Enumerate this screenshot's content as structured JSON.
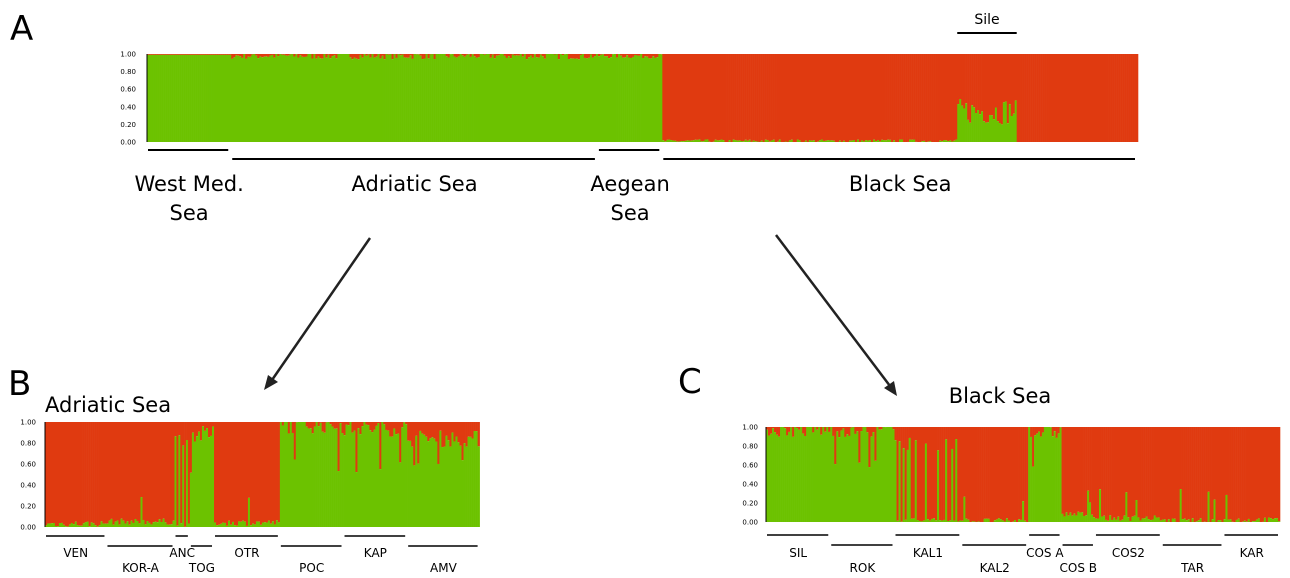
{
  "colors": {
    "green": "#6cc200",
    "red": "#e03a10"
  },
  "chart_data": [
    {
      "panel": "A",
      "type": "bar",
      "stacked": true,
      "title": "",
      "xlabel": "",
      "ylabel": "",
      "ylim": [
        0,
        1
      ],
      "yticks": [
        "1.00",
        "0.80",
        "0.60",
        "0.40",
        "0.20",
        "0.00"
      ],
      "series_colors": [
        "green",
        "red"
      ],
      "groups": [
        {
          "label": "West Med. Sea",
          "lines": [
            "West Med.",
            "Sea"
          ],
          "share": 0.085,
          "cluster1_level": 0.99,
          "cluster1_noise": 0.0
        },
        {
          "label": "Adriatic Sea",
          "lines": [
            "Adriatic Sea"
          ],
          "share": 0.37,
          "cluster1_level": 0.98,
          "cluster1_noise": 0.04
        },
        {
          "label": "Aegean Sea",
          "lines": [
            "Aegean",
            "Sea"
          ],
          "share": 0.065,
          "cluster1_level": 0.98,
          "cluster1_noise": 0.03
        },
        {
          "label": "Black Sea",
          "lines": [
            "Black Sea"
          ],
          "share": 0.48,
          "cluster1_level": 0.01,
          "cluster1_noise": 0.02
        }
      ],
      "annotation": {
        "label": "Sile",
        "cluster1_level": 0.35
      }
    },
    {
      "panel": "B",
      "title": "Adriatic Sea",
      "type": "bar",
      "stacked": true,
      "ylim": [
        0,
        1
      ],
      "yticks": [
        "1.00",
        "0.80",
        "0.60",
        "0.40",
        "0.20",
        "0.00"
      ],
      "series_colors": [
        "green",
        "red"
      ],
      "populations": [
        {
          "label": "VEN",
          "share": 0.14,
          "cluster1_level": 0.03
        },
        {
          "label": "KOR-A",
          "share": 0.155,
          "cluster1_level": 0.05
        },
        {
          "label": "ANC",
          "share": 0.035,
          "cluster1_level": 0.45
        },
        {
          "label": "TOG",
          "share": 0.055,
          "cluster1_level": 0.88
        },
        {
          "label": "OTR",
          "share": 0.15,
          "cluster1_level": 0.04
        },
        {
          "label": "POC",
          "share": 0.145,
          "cluster1_level": 0.97
        },
        {
          "label": "KAP",
          "share": 0.145,
          "cluster1_level": 0.94
        },
        {
          "label": "AMV",
          "share": 0.165,
          "cluster1_level": 0.84
        }
      ]
    },
    {
      "panel": "C",
      "title": "Black Sea",
      "type": "bar",
      "stacked": true,
      "ylim": [
        0,
        1
      ],
      "yticks": [
        "1.00",
        "0.80",
        "0.60",
        "0.40",
        "0.20",
        "0.00"
      ],
      "series_colors": [
        "green",
        "red"
      ],
      "populations": [
        {
          "label": "SIL",
          "share": 0.125,
          "cluster1_level": 0.97
        },
        {
          "label": "ROK",
          "share": 0.125,
          "cluster1_level": 0.97
        },
        {
          "label": "KAL1",
          "share": 0.13,
          "cluster1_level": 0.2
        },
        {
          "label": "KAL2",
          "share": 0.13,
          "cluster1_level": 0.01
        },
        {
          "label": "COS A",
          "share": 0.065,
          "cluster1_level": 0.95
        },
        {
          "label": "COS B",
          "share": 0.065,
          "cluster1_level": 0.08
        },
        {
          "label": "COS2",
          "share": 0.13,
          "cluster1_level": 0.04
        },
        {
          "label": "TAR",
          "share": 0.12,
          "cluster1_level": 0.01
        },
        {
          "label": "KAR",
          "share": 0.11,
          "cluster1_level": 0.02
        }
      ]
    }
  ],
  "panel_letters": [
    "A",
    "B",
    "C"
  ]
}
